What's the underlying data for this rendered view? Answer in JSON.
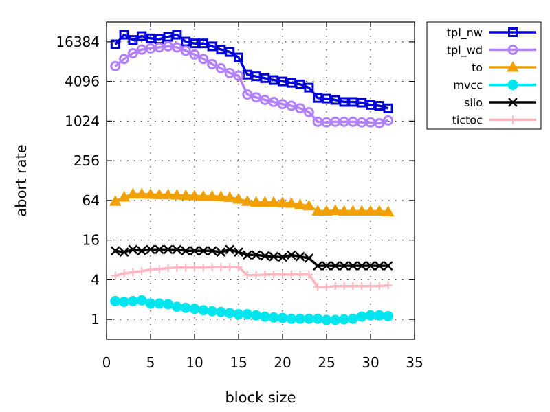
{
  "chart_data": {
    "type": "line",
    "title": "",
    "xlabel": "block size",
    "ylabel": "abort rate",
    "xlim": [
      0,
      35
    ],
    "ylim": [
      0.5,
      32768
    ],
    "yscale": "log2",
    "grid": true,
    "legend_position": "outside-top-right",
    "x_ticks": [
      "0",
      "5",
      "10",
      "15",
      "20",
      "25",
      "30",
      "35"
    ],
    "x_tick_values": [
      0,
      5,
      10,
      15,
      20,
      25,
      30,
      35
    ],
    "y_ticks": [
      "1",
      "4",
      "16",
      "64",
      "256",
      "1024",
      "4096",
      "16384"
    ],
    "y_tick_values": [
      1,
      4,
      16,
      64,
      256,
      1024,
      4096,
      16384
    ],
    "x": [
      1,
      2,
      3,
      4,
      5,
      6,
      7,
      8,
      9,
      10,
      11,
      12,
      13,
      14,
      15,
      16,
      17,
      18,
      19,
      20,
      21,
      22,
      23,
      24,
      25,
      26,
      27,
      28,
      29,
      30,
      31,
      32
    ],
    "series": [
      {
        "name": "tpl_nw",
        "color": "#0000dd",
        "marker": "square-open",
        "values": [
          15000,
          21000,
          17500,
          20000,
          18500,
          18000,
          19500,
          21000,
          16500,
          15500,
          15500,
          14000,
          12500,
          11500,
          9500,
          5200,
          4900,
          4600,
          4300,
          4100,
          3900,
          3700,
          3300,
          2300,
          2250,
          2150,
          2000,
          2000,
          1950,
          1800,
          1750,
          1600
        ]
      },
      {
        "name": "tpl_wd",
        "color": "#b380ff",
        "marker": "circle-open",
        "values": [
          7000,
          9000,
          11000,
          12500,
          13000,
          13500,
          14000,
          13500,
          12000,
          10500,
          9000,
          7500,
          6500,
          5500,
          5000,
          2600,
          2350,
          2150,
          2000,
          1850,
          1750,
          1600,
          1400,
          1000,
          980,
          1000,
          1000,
          1000,
          980,
          980,
          950,
          1050
        ]
      },
      {
        "name": "to",
        "color": "#f0a000",
        "marker": "triangle-filled",
        "values": [
          62,
          72,
          80,
          80,
          79,
          78,
          78,
          77,
          76,
          75,
          74,
          74,
          73,
          71,
          67,
          62,
          60,
          60,
          60,
          59,
          58,
          55,
          53,
          44,
          44,
          45,
          44,
          44,
          44,
          44,
          44,
          43
        ]
      },
      {
        "name": "mvcc",
        "color": "#00e5ee",
        "marker": "circle-filled",
        "values": [
          1.9,
          1.85,
          1.9,
          1.95,
          1.75,
          1.75,
          1.7,
          1.55,
          1.5,
          1.45,
          1.38,
          1.33,
          1.3,
          1.25,
          1.2,
          1.2,
          1.15,
          1.1,
          1.07,
          1.05,
          1.02,
          1.02,
          1.02,
          1.02,
          0.98,
          0.98,
          1.0,
          1.02,
          1.1,
          1.15,
          1.15,
          1.12
        ]
      },
      {
        "name": "silo",
        "color": "#000000",
        "marker": "x",
        "values": [
          11,
          10.5,
          11.5,
          11,
          11.5,
          11.5,
          11.5,
          11.5,
          11,
          11,
          11,
          11,
          10.5,
          11.5,
          10.5,
          9.5,
          9.5,
          9.2,
          9,
          8.8,
          9.5,
          9,
          8.5,
          6.5,
          6.5,
          6.5,
          6.5,
          6.5,
          6.5,
          6.5,
          6.5,
          6.5
        ]
      },
      {
        "name": "tictoc",
        "color": "#ffb6c1",
        "marker": "plus",
        "values": [
          4.6,
          5,
          5.2,
          5.4,
          5.7,
          5.8,
          6,
          6.1,
          6.1,
          6.1,
          6.1,
          6.2,
          6.2,
          6.2,
          6.2,
          4.7,
          4.7,
          4.8,
          4.8,
          4.8,
          4.8,
          4.8,
          4.8,
          3.1,
          3.1,
          3.2,
          3.2,
          3.2,
          3.2,
          3.2,
          3.2,
          3.3
        ]
      }
    ]
  }
}
